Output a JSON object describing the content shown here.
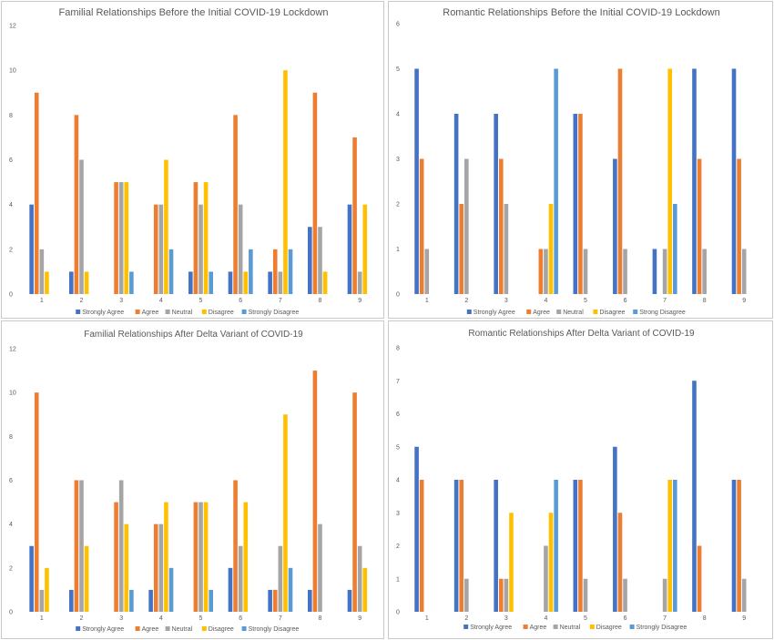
{
  "chart_data": [
    {
      "type": "bar",
      "title": "Familial Relationships Before the Initial COVID-19 Lockdown",
      "categories": [
        "1",
        "2",
        "3",
        "4",
        "5",
        "6",
        "7",
        "8",
        "9"
      ],
      "ylim": [
        0,
        12
      ],
      "yticks": [
        0,
        2,
        4,
        6,
        8,
        10,
        12
      ],
      "grid": false,
      "legend_position": "bottom",
      "series": [
        {
          "name": "Strongly Agree",
          "color": "#4472C4",
          "values": [
            4,
            1,
            0,
            0,
            1,
            1,
            1,
            3,
            4
          ]
        },
        {
          "name": "Agree",
          "color": "#ED7D31",
          "values": [
            9,
            8,
            5,
            4,
            5,
            8,
            2,
            9,
            7
          ]
        },
        {
          "name": "Neutral",
          "color": "#A5A5A5",
          "values": [
            2,
            6,
            5,
            4,
            4,
            4,
            1,
            3,
            1
          ]
        },
        {
          "name": "Disagree",
          "color": "#FFC000",
          "values": [
            1,
            1,
            5,
            6,
            5,
            1,
            10,
            1,
            4
          ]
        },
        {
          "name": "Strongly Disagree",
          "color": "#5B9BD5",
          "values": [
            0,
            0,
            1,
            2,
            1,
            2,
            2,
            0,
            0
          ]
        }
      ]
    },
    {
      "type": "bar",
      "title": "Romantic Relationships Before the Initial COVID-19 Lockdown",
      "categories": [
        "1",
        "2",
        "3",
        "4",
        "5",
        "6",
        "7",
        "8",
        "9"
      ],
      "ylim": [
        0,
        6
      ],
      "yticks": [
        0,
        1,
        2,
        3,
        4,
        5,
        6
      ],
      "grid": false,
      "legend_position": "bottom",
      "series": [
        {
          "name": "Strongly Agree",
          "color": "#4472C4",
          "values": [
            5,
            4,
            4,
            0,
            4,
            3,
            1,
            5,
            5
          ]
        },
        {
          "name": "Agree",
          "color": "#ED7D31",
          "values": [
            3,
            2,
            3,
            1,
            4,
            5,
            0,
            3,
            3
          ]
        },
        {
          "name": "Neutral",
          "color": "#A5A5A5",
          "values": [
            1,
            3,
            2,
            1,
            1,
            1,
            1,
            1,
            1
          ]
        },
        {
          "name": "Disagree",
          "color": "#FFC000",
          "values": [
            0,
            0,
            0,
            2,
            0,
            0,
            5,
            0,
            0
          ]
        },
        {
          "name": "Strong Disagree",
          "color": "#5B9BD5",
          "values": [
            0,
            0,
            0,
            5,
            0,
            0,
            2,
            0,
            0
          ]
        }
      ]
    },
    {
      "type": "bar",
      "title": "Familial Relationships After Delta Variant of COVID-19",
      "categories": [
        "1",
        "2",
        "3",
        "4",
        "5",
        "6",
        "7",
        "8",
        "9"
      ],
      "ylim": [
        0,
        12
      ],
      "yticks": [
        0,
        2,
        4,
        6,
        8,
        10,
        12
      ],
      "grid": false,
      "legend_position": "bottom",
      "series": [
        {
          "name": "Strongly Agree",
          "color": "#4472C4",
          "values": [
            3,
            1,
            0,
            1,
            0,
            2,
            1,
            1,
            1
          ]
        },
        {
          "name": "Agree",
          "color": "#ED7D31",
          "values": [
            10,
            6,
            5,
            4,
            5,
            6,
            1,
            11,
            10
          ]
        },
        {
          "name": "Neutral",
          "color": "#A5A5A5",
          "values": [
            1,
            6,
            6,
            4,
            5,
            3,
            3,
            4,
            3
          ]
        },
        {
          "name": "Disagree",
          "color": "#FFC000",
          "values": [
            2,
            3,
            4,
            5,
            5,
            5,
            9,
            0,
            2
          ]
        },
        {
          "name": "Strongly Disagree",
          "color": "#5B9BD5",
          "values": [
            0,
            0,
            1,
            2,
            1,
            0,
            2,
            0,
            0
          ]
        }
      ]
    },
    {
      "type": "bar",
      "title": "Romantic Relationships After Delta Variant of COVID-19",
      "categories": [
        "1",
        "2",
        "3",
        "4",
        "5",
        "6",
        "7",
        "8",
        "9"
      ],
      "ylim": [
        0,
        8
      ],
      "yticks": [
        0,
        1,
        2,
        3,
        4,
        5,
        6,
        7,
        8
      ],
      "grid": false,
      "legend_position": "bottom",
      "series": [
        {
          "name": "Strongly Agree",
          "color": "#4472C4",
          "values": [
            5,
            4,
            4,
            0,
            4,
            5,
            0,
            7,
            4
          ]
        },
        {
          "name": "Agree",
          "color": "#ED7D31",
          "values": [
            4,
            4,
            1,
            0,
            4,
            3,
            0,
            2,
            4
          ]
        },
        {
          "name": "Neutral",
          "color": "#A5A5A5",
          "values": [
            0,
            1,
            1,
            2,
            1,
            1,
            1,
            0,
            1
          ]
        },
        {
          "name": "Disagree",
          "color": "#FFC000",
          "values": [
            0,
            0,
            3,
            3,
            0,
            0,
            4,
            0,
            0
          ]
        },
        {
          "name": "Strongly Disagree",
          "color": "#5B9BD5",
          "values": [
            0,
            0,
            0,
            4,
            0,
            0,
            4,
            0,
            0
          ]
        }
      ]
    }
  ]
}
